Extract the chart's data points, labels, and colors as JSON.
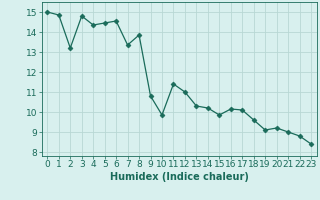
{
  "x": [
    0,
    1,
    2,
    3,
    4,
    5,
    6,
    7,
    8,
    9,
    10,
    11,
    12,
    13,
    14,
    15,
    16,
    17,
    18,
    19,
    20,
    21,
    22,
    23
  ],
  "y": [
    15.0,
    14.85,
    13.2,
    14.8,
    14.35,
    14.45,
    14.55,
    13.35,
    13.85,
    10.8,
    9.85,
    11.4,
    11.0,
    10.3,
    10.2,
    9.85,
    10.15,
    10.1,
    9.6,
    9.1,
    9.2,
    9.0,
    8.8,
    8.4
  ],
  "line_color": "#1a6b5a",
  "marker": "D",
  "marker_size": 2.5,
  "bg_color": "#d8f0ee",
  "grid_color": "#b8d8d4",
  "xlabel": "Humidex (Indice chaleur)",
  "xlim": [
    -0.5,
    23.5
  ],
  "ylim": [
    7.8,
    15.5
  ],
  "yticks": [
    8,
    9,
    10,
    11,
    12,
    13,
    14,
    15
  ],
  "xticks": [
    0,
    1,
    2,
    3,
    4,
    5,
    6,
    7,
    8,
    9,
    10,
    11,
    12,
    13,
    14,
    15,
    16,
    17,
    18,
    19,
    20,
    21,
    22,
    23
  ],
  "label_fontsize": 7,
  "tick_fontsize": 6.5
}
